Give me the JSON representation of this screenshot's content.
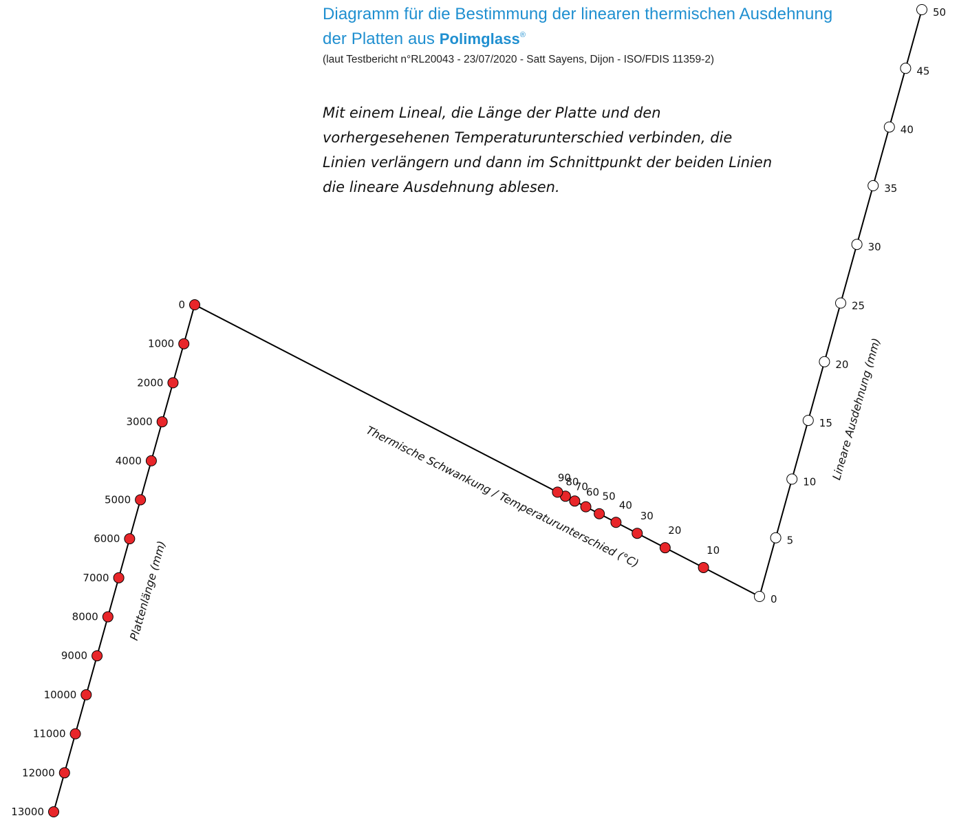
{
  "header": {
    "title_line1": "Diagramm für die Bestimmung der linearen thermischen Ausdehnung",
    "title_line2": "der Platten aus",
    "title_brand": "Polimglass",
    "title_mark": "®",
    "subtitle": "(laut Testbericht n°RL20043 - 23/07/2020 - Satt Sayens, Dijon - ISO/FDIS 11359-2)",
    "instruction": "Mit einem Lineal, die Länge der Platte und den vorhergesehenen Temperaturunterschied verbinden, die Linien verlängern und dann im Schnittpunkt der beiden Linien die lineare Ausdehnung ablesen."
  },
  "chart_data": {
    "type": "nomogram",
    "colors": {
      "red_marker": "#e8262a",
      "white_marker": "#ffffff",
      "line": "#000000"
    },
    "axes": [
      {
        "id": "plattenlaenge",
        "label": "Plattenlänge (mm)",
        "marker": "red",
        "ticks": [
          0,
          1000,
          2000,
          3000,
          4000,
          5000,
          6000,
          7000,
          8000,
          9000,
          10000,
          11000,
          12000,
          13000
        ]
      },
      {
        "id": "temperaturunterschied",
        "label": "Thermische Schwankung / Temperaturunterschied (°C)",
        "marker": "red",
        "ticks": [
          10,
          20,
          30,
          40,
          50,
          60,
          70,
          80,
          90
        ]
      },
      {
        "id": "lineare_ausdehnung",
        "label": "Lineare Ausdehnung (mm)",
        "marker": "white",
        "ticks": [
          0,
          5,
          10,
          15,
          20,
          25,
          30,
          35,
          40,
          45,
          50
        ]
      }
    ]
  }
}
